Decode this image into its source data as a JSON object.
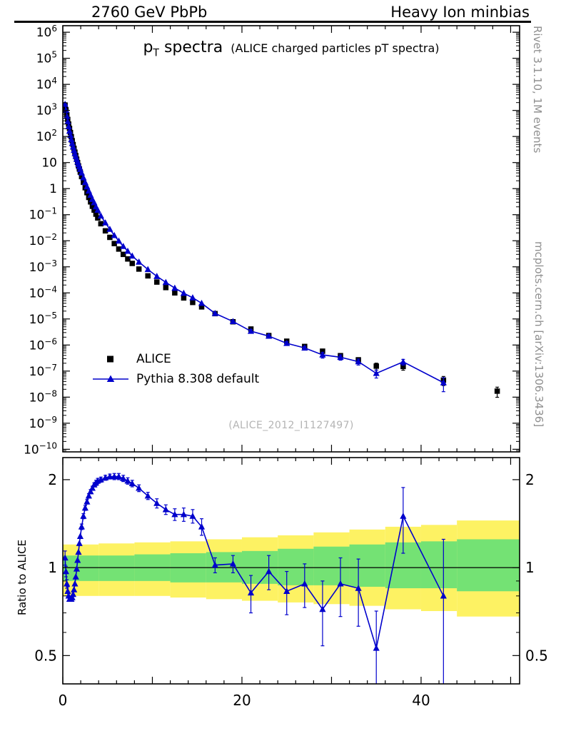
{
  "header": {
    "left": "2760 GeV PbPb",
    "right": "Heavy Ion minbias"
  },
  "side_notes": {
    "top": "Rivet 3.1.10, 1M events",
    "bottom": "mcplots.cern.ch [arXiv:1306.3436]"
  },
  "chart_data": {
    "type": "line",
    "title": {
      "prefix": "p",
      "sub": "T",
      "rest": " spectra",
      "note": "(ALICE charged particles pT spectra)"
    },
    "watermark": "(ALICE_2012_I1127497)",
    "xlim": [
      0,
      51
    ],
    "xlabel_ticks": [
      0,
      20,
      40
    ],
    "x_major_step": 10,
    "x_minor_step": 2,
    "main_panel": {
      "ylog_top_exp": 6.25,
      "ylog_bottom_exp": -10.1,
      "y_label_exponents": [
        6,
        5,
        4,
        3,
        2,
        1,
        0,
        -1,
        -2,
        -3,
        -4,
        -5,
        -6,
        -7,
        -8,
        -9,
        -10
      ],
      "series": [
        {
          "name": "ALICE",
          "marker": "square",
          "color": "#000000",
          "line": false,
          "points": [
            [
              0.25,
              1600,
              0
            ],
            [
              0.35,
              1050,
              0
            ],
            [
              0.45,
              680,
              0
            ],
            [
              0.55,
              450,
              0
            ],
            [
              0.65,
              300,
              0
            ],
            [
              0.75,
              205,
              0
            ],
            [
              0.85,
              142,
              0
            ],
            [
              0.95,
              98,
              0
            ],
            [
              1.05,
              69,
              0
            ],
            [
              1.15,
              49,
              0
            ],
            [
              1.25,
              35,
              0
            ],
            [
              1.35,
              25,
              0
            ],
            [
              1.45,
              18.5,
              0
            ],
            [
              1.55,
              13.5,
              0
            ],
            [
              1.65,
              10,
              0
            ],
            [
              1.75,
              7.5,
              0
            ],
            [
              1.85,
              5.7,
              0
            ],
            [
              1.95,
              4.3,
              0
            ],
            [
              2.1,
              2.9,
              0
            ],
            [
              2.3,
              1.75,
              0
            ],
            [
              2.5,
              1.08,
              0
            ],
            [
              2.7,
              0.7,
              0
            ],
            [
              2.9,
              0.46,
              0
            ],
            [
              3.1,
              0.31,
              0
            ],
            [
              3.3,
              0.21,
              0
            ],
            [
              3.5,
              0.15,
              0
            ],
            [
              3.7,
              0.105,
              0
            ],
            [
              3.9,
              0.075,
              0
            ],
            [
              4.25,
              0.045,
              0
            ],
            [
              4.75,
              0.024,
              0
            ],
            [
              5.25,
              0.0135,
              0
            ],
            [
              5.75,
              0.0078,
              0
            ],
            [
              6.25,
              0.0048,
              0
            ],
            [
              6.75,
              0.003,
              0
            ],
            [
              7.25,
              0.002,
              0
            ],
            [
              7.75,
              0.00135,
              0
            ],
            [
              8.5,
              0.00082,
              0
            ],
            [
              9.5,
              0.00045,
              0
            ],
            [
              10.5,
              0.00026,
              0
            ],
            [
              11.5,
              0.00016,
              0
            ],
            [
              12.5,
              0.0001,
              0
            ],
            [
              13.5,
              6.4e-05,
              0
            ],
            [
              14.5,
              4.3e-05,
              0
            ],
            [
              15.5,
              2.9e-05,
              0
            ],
            [
              17,
              1.6e-05,
              0
            ],
            [
              19,
              7.8e-06,
              0.08
            ],
            [
              21,
              4.1e-06,
              0.1
            ],
            [
              23,
              2.3e-06,
              0.11
            ],
            [
              25,
              1.4e-06,
              0.12
            ],
            [
              27,
              8.8e-07,
              0.14
            ],
            [
              29,
              5.8e-07,
              0.16
            ],
            [
              31,
              3.9e-07,
              0.18
            ],
            [
              33,
              2.7e-07,
              0.2
            ],
            [
              35,
              1.55e-07,
              0.3
            ],
            [
              38,
              1.5e-07,
              0.28
            ],
            [
              42.5,
              4.5e-08,
              0.38
            ],
            [
              48.5,
              1.7e-08,
              0.42
            ]
          ]
        },
        {
          "name": "Pythia 8.308 default",
          "marker": "triangle",
          "color": "#0000cc",
          "line": true,
          "points": [
            [
              0.25,
              1730,
              0
            ],
            [
              0.35,
              1020,
              0
            ],
            [
              0.45,
              600,
              0
            ],
            [
              0.55,
              374,
              0
            ],
            [
              0.65,
              240,
              0
            ],
            [
              0.75,
              160,
              0
            ],
            [
              0.85,
              111,
              0
            ],
            [
              0.95,
              76,
              0
            ],
            [
              1.05,
              54.5,
              0
            ],
            [
              1.15,
              39.7,
              0
            ],
            [
              1.25,
              29.4,
              0
            ],
            [
              1.35,
              22,
              0
            ],
            [
              1.45,
              17.2,
              0
            ],
            [
              1.55,
              13.4,
              0
            ],
            [
              1.65,
              10.6,
              0
            ],
            [
              1.75,
              8.5,
              0
            ],
            [
              1.85,
              6.9,
              0
            ],
            [
              1.95,
              5.5,
              0
            ],
            [
              2.1,
              4.0,
              0
            ],
            [
              2.3,
              2.63,
              0
            ],
            [
              2.5,
              1.73,
              0
            ],
            [
              2.7,
              1.18,
              0
            ],
            [
              2.9,
              0.81,
              0
            ],
            [
              3.1,
              0.56,
              0
            ],
            [
              3.3,
              0.39,
              0
            ],
            [
              3.5,
              0.29,
              0
            ],
            [
              3.7,
              0.2,
              0
            ],
            [
              3.9,
              0.15,
              0
            ],
            [
              4.25,
              0.09,
              0
            ],
            [
              4.75,
              0.049,
              0
            ],
            [
              5.25,
              0.0277,
              0
            ],
            [
              5.75,
              0.016,
              0
            ],
            [
              6.25,
              0.0098,
              0
            ],
            [
              6.75,
              0.0061,
              0
            ],
            [
              7.25,
              0.004,
              0
            ],
            [
              7.75,
              0.0026,
              0
            ],
            [
              8.5,
              0.00153,
              0
            ],
            [
              9.5,
              0.00079,
              0
            ],
            [
              10.5,
              0.00043,
              0
            ],
            [
              11.5,
              0.000253,
              0
            ],
            [
              12.5,
              0.000152,
              0
            ],
            [
              13.5,
              9.7e-05,
              0
            ],
            [
              14.5,
              6.5e-05,
              0
            ],
            [
              15.5,
              4e-05,
              0
            ],
            [
              17,
              1.63e-05,
              0.06
            ],
            [
              19,
              8e-06,
              0.07
            ],
            [
              21,
              3.4e-06,
              0.15
            ],
            [
              23,
              2.2e-06,
              0.14
            ],
            [
              25,
              1.16e-06,
              0.17
            ],
            [
              27,
              7.7e-07,
              0.17
            ],
            [
              29,
              4.2e-07,
              0.25
            ],
            [
              31,
              3.4e-07,
              0.23
            ],
            [
              33,
              2.3e-07,
              0.26
            ],
            [
              35,
              8.2e-08,
              0.34
            ],
            [
              38,
              2.25e-07,
              0.25
            ],
            [
              42.5,
              3.6e-08,
              0.55
            ]
          ]
        }
      ]
    },
    "ratio_panel": {
      "ylabel": "Ratio to ALICE",
      "ylim": [
        0.4,
        2.38
      ],
      "yticks": [
        0.5,
        1,
        2
      ],
      "ytick_labels": [
        "0.5",
        "1",
        "2"
      ],
      "yminor": [
        0.4,
        0.6,
        0.7,
        0.8,
        0.9
      ],
      "unity": 1,
      "color": "#0000cc",
      "bands": {
        "x_edges": [
          0,
          4,
          8,
          12,
          16,
          20,
          24,
          28,
          32,
          36,
          40,
          44,
          51
        ],
        "yellow": {
          "color": "#fdf263",
          "lo": [
            0.8,
            0.8,
            0.8,
            0.79,
            0.78,
            0.77,
            0.76,
            0.75,
            0.74,
            0.72,
            0.71,
            0.68
          ],
          "hi": [
            1.2,
            1.21,
            1.22,
            1.23,
            1.25,
            1.27,
            1.29,
            1.32,
            1.35,
            1.38,
            1.4,
            1.45
          ]
        },
        "green": {
          "color": "#74e274",
          "lo": [
            0.9,
            0.9,
            0.9,
            0.89,
            0.89,
            0.88,
            0.87,
            0.87,
            0.86,
            0.85,
            0.85,
            0.83
          ],
          "hi": [
            1.1,
            1.1,
            1.11,
            1.12,
            1.13,
            1.14,
            1.16,
            1.18,
            1.2,
            1.22,
            1.23,
            1.25
          ]
        }
      },
      "points": [
        [
          0.25,
          1.08,
          0.06
        ],
        [
          0.35,
          0.97,
          0.04
        ],
        [
          0.45,
          0.88,
          0.03
        ],
        [
          0.55,
          0.83,
          0.03
        ],
        [
          0.65,
          0.8,
          0.02
        ],
        [
          0.75,
          0.78,
          0.02
        ],
        [
          0.85,
          0.78,
          0.02
        ],
        [
          0.95,
          0.78,
          0.02
        ],
        [
          1.05,
          0.79,
          0.02
        ],
        [
          1.15,
          0.81,
          0.02
        ],
        [
          1.25,
          0.84,
          0.02
        ],
        [
          1.35,
          0.88,
          0.02
        ],
        [
          1.45,
          0.93,
          0.02
        ],
        [
          1.55,
          0.99,
          0.02
        ],
        [
          1.65,
          1.06,
          0.02
        ],
        [
          1.75,
          1.13,
          0.02
        ],
        [
          1.85,
          1.21,
          0.02
        ],
        [
          1.95,
          1.28,
          0.02
        ],
        [
          2.1,
          1.38,
          0.03
        ],
        [
          2.3,
          1.5,
          0.03
        ],
        [
          2.5,
          1.6,
          0.03
        ],
        [
          2.7,
          1.68,
          0.03
        ],
        [
          2.9,
          1.76,
          0.03
        ],
        [
          3.1,
          1.82,
          0.03
        ],
        [
          3.3,
          1.87,
          0.03
        ],
        [
          3.5,
          1.92,
          0.03
        ],
        [
          3.7,
          1.95,
          0.04
        ],
        [
          3.9,
          1.98,
          0.04
        ],
        [
          4.25,
          2.0,
          0.04
        ],
        [
          4.75,
          2.03,
          0.04
        ],
        [
          5.25,
          2.05,
          0.04
        ],
        [
          5.75,
          2.05,
          0.05
        ],
        [
          6.25,
          2.05,
          0.05
        ],
        [
          6.75,
          2.02,
          0.05
        ],
        [
          7.25,
          1.98,
          0.05
        ],
        [
          7.75,
          1.94,
          0.05
        ],
        [
          8.5,
          1.87,
          0.05
        ],
        [
          9.5,
          1.76,
          0.05
        ],
        [
          10.5,
          1.66,
          0.06
        ],
        [
          11.5,
          1.58,
          0.06
        ],
        [
          12.5,
          1.52,
          0.07
        ],
        [
          13.5,
          1.52,
          0.08
        ],
        [
          14.5,
          1.5,
          0.08
        ],
        [
          15.5,
          1.38,
          0.09
        ],
        [
          17,
          1.02,
          0.06
        ],
        [
          19,
          1.03,
          0.07
        ],
        [
          21,
          0.82,
          0.12
        ],
        [
          23,
          0.97,
          0.13
        ],
        [
          25,
          0.83,
          0.14
        ],
        [
          27,
          0.88,
          0.15
        ],
        [
          29,
          0.72,
          0.18
        ],
        [
          31,
          0.88,
          0.2
        ],
        [
          33,
          0.85,
          0.22
        ],
        [
          35,
          0.53,
          0.18
        ],
        [
          38,
          1.5,
          0.38
        ],
        [
          42.5,
          0.8,
          0.45
        ]
      ]
    }
  }
}
